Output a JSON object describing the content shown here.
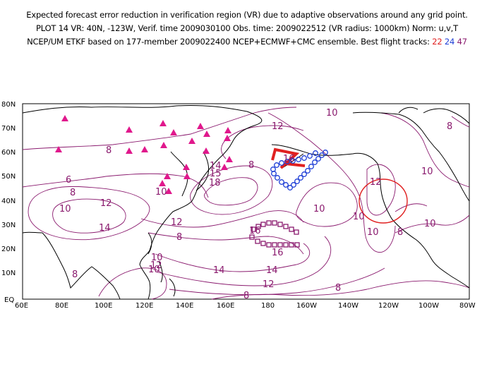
{
  "header": {
    "line1": "Expected forecast error reduction in verification region (VR) due to adaptive observations around any grid point.",
    "line2": "PLOT 14 VR: 40N, -123W, Verif. time 2009030100 Obs. time: 2009022512 (VR radius: 1000km) Norm: u,v,T",
    "line3_prefix": "NCEP/UM ETKF based on 177-member 2009022400 NCEP+ECMWF+CMC ensemble. Best flight tracks:",
    "track_ids": [
      "22",
      "24",
      "47"
    ]
  },
  "axes": {
    "y_labels": [
      "80N",
      "70N",
      "60N",
      "50N",
      "40N",
      "30N",
      "20N",
      "10N",
      "EQ"
    ],
    "x_labels": [
      "60E",
      "80E",
      "100E",
      "120E",
      "140E",
      "160E",
      "180",
      "160W",
      "140W",
      "120W",
      "100W",
      "80W"
    ]
  },
  "colors": {
    "contour": "#8a1a6e",
    "coast": "#000000",
    "track22": "#e02020",
    "track24": "#1f3fd6",
    "track47": "#8a1a6e",
    "raob_triangles": "#e0188c",
    "verification_circle": "#e02020"
  },
  "contour_labels": [
    "10",
    "12",
    "8",
    "8",
    "6",
    "8",
    "10",
    "12",
    "14",
    "10",
    "14",
    "12",
    "8",
    "16",
    "14",
    "15",
    "18",
    "16",
    "16",
    "14",
    "12",
    "10",
    "8",
    "10",
    "12",
    "10",
    "10",
    "8",
    "8",
    "8",
    "10",
    "8",
    "10",
    "12"
  ],
  "markers": {
    "verification_region": {
      "center_lon": -123,
      "center_lat": 40,
      "radius_km": 1000
    }
  }
}
